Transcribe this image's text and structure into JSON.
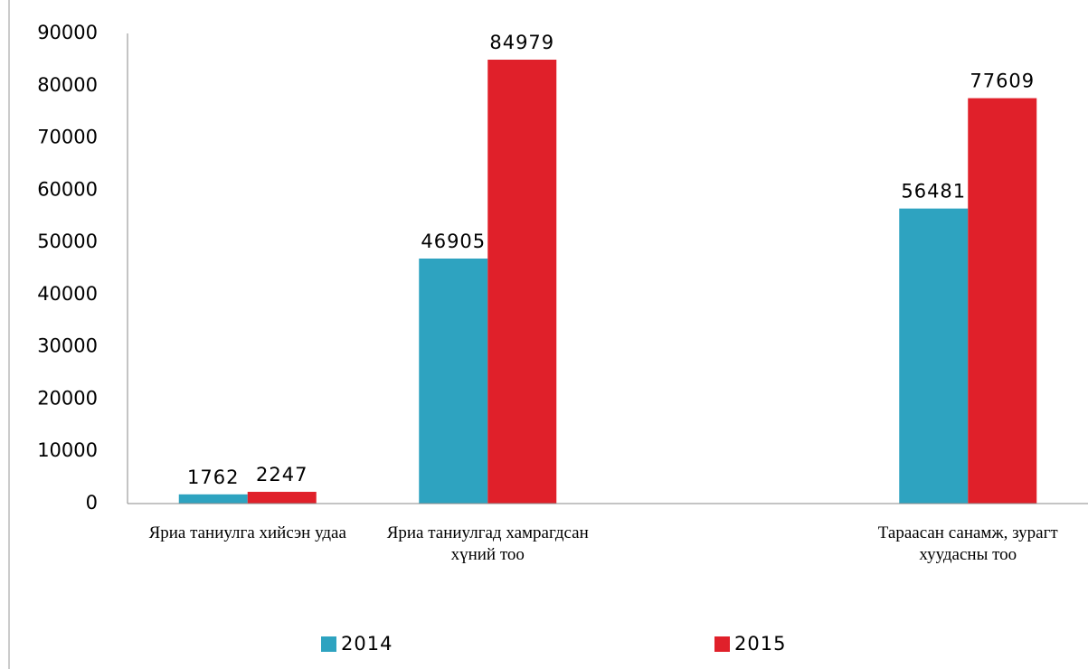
{
  "chart_data": {
    "type": "bar",
    "categories": [
      "Яриа таниулга хийсэн удаа",
      "Яриа таниулгад хамрагдсан хүний тоо",
      null,
      "Тараасан санамж, зурагт хуудасны тоо"
    ],
    "series": [
      {
        "name": "2014",
        "color": "#2ea3c0",
        "values": [
          1762,
          46905,
          null,
          56481
        ]
      },
      {
        "name": "2015",
        "color": "#e0202a",
        "values": [
          2247,
          84979,
          null,
          77609
        ]
      }
    ],
    "ylim": [
      0,
      90000
    ],
    "yticks": [
      0,
      10000,
      20000,
      30000,
      40000,
      50000,
      60000,
      70000,
      80000,
      90000
    ],
    "grid": false
  }
}
